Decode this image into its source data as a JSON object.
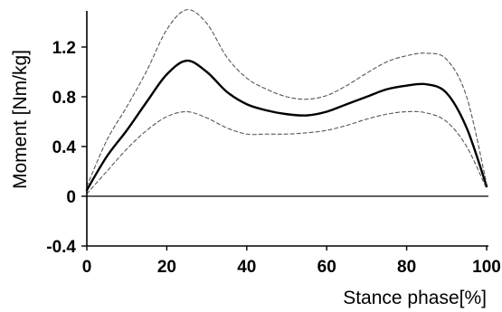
{
  "chart_data": {
    "type": "line",
    "title": "",
    "xlabel": "Stance phase[%]",
    "ylabel": "Moment [Nm/kg]",
    "xlim": [
      0,
      100
    ],
    "ylim": [
      -0.4,
      1.6
    ],
    "xticks": [
      0,
      20,
      40,
      60,
      80,
      100
    ],
    "xtick_labels": [
      "0",
      "20",
      "40",
      "60",
      "80",
      "100"
    ],
    "yticks": [
      -0.4,
      0,
      0.4,
      0.8,
      1.2
    ],
    "ytick_labels": [
      "-0.4",
      "0",
      "0.4",
      "0.8",
      "1.2"
    ],
    "grid": false,
    "legend": false,
    "colors": {
      "mean": "#000000",
      "band": "#555555",
      "axis": "#000000"
    },
    "x": [
      0,
      5,
      10,
      15,
      20,
      25,
      30,
      35,
      40,
      45,
      50,
      55,
      60,
      65,
      70,
      75,
      80,
      85,
      90,
      95,
      100
    ],
    "series": [
      {
        "role": "mean",
        "style": "solid",
        "values": [
          0.05,
          0.32,
          0.53,
          0.76,
          0.98,
          1.09,
          1.0,
          0.84,
          0.74,
          0.69,
          0.66,
          0.65,
          0.68,
          0.74,
          0.8,
          0.86,
          0.89,
          0.9,
          0.83,
          0.55,
          0.08
        ]
      },
      {
        "role": "upper",
        "style": "dashed",
        "values": [
          0.08,
          0.45,
          0.72,
          1.01,
          1.34,
          1.5,
          1.39,
          1.12,
          0.95,
          0.86,
          0.8,
          0.78,
          0.81,
          0.89,
          0.99,
          1.08,
          1.13,
          1.15,
          1.1,
          0.8,
          0.1
        ]
      },
      {
        "role": "lower",
        "style": "dashed",
        "values": [
          0.02,
          0.2,
          0.38,
          0.53,
          0.64,
          0.68,
          0.63,
          0.55,
          0.5,
          0.5,
          0.5,
          0.51,
          0.53,
          0.57,
          0.62,
          0.66,
          0.68,
          0.67,
          0.6,
          0.4,
          0.06
        ]
      }
    ]
  }
}
